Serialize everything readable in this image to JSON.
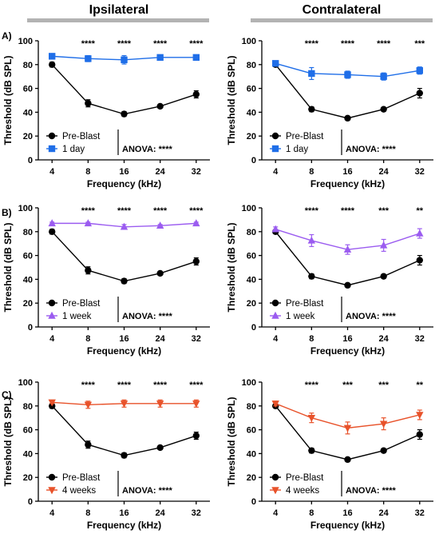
{
  "headers": {
    "left": "Ipsilateral",
    "right": "Contralateral",
    "bar_color": "#b3b3b3"
  },
  "shared_axes": {
    "xlabel": "Frequency (kHz)",
    "ylabel": "Threshold (dB SPL)",
    "x_ticks": [
      "4",
      "8",
      "16",
      "24",
      "32"
    ],
    "y_ticks": [
      0,
      20,
      40,
      60,
      80,
      100
    ],
    "ylim": [
      0,
      100
    ],
    "anova_label": "ANOVA:",
    "anova_value": "****"
  },
  "rows": [
    {
      "label": "A)"
    },
    {
      "label": "B)"
    },
    {
      "label": "C)"
    }
  ],
  "chart_data": [
    {
      "type": "line",
      "row": "A)",
      "side": "Ipsilateral",
      "categories": [
        "4",
        "8",
        "16",
        "24",
        "32"
      ],
      "series": [
        {
          "name": "Pre-Blast",
          "color": "#000000",
          "marker": "circle",
          "values": [
            80,
            47.5,
            38.5,
            45,
            55
          ],
          "errors": [
            2,
            3,
            2,
            1,
            3
          ]
        },
        {
          "name": "1 day",
          "color": "#1f6ee8",
          "marker": "square",
          "values": [
            87,
            85,
            84,
            86,
            86
          ],
          "errors": [
            1,
            2.5,
            3.5,
            1.5,
            2
          ]
        }
      ],
      "significance": [
        "",
        "****",
        "****",
        "****",
        "****"
      ],
      "anova": "****"
    },
    {
      "type": "line",
      "row": "A)",
      "side": "Contralateral",
      "categories": [
        "4",
        "8",
        "16",
        "24",
        "32"
      ],
      "series": [
        {
          "name": "Pre-Blast",
          "color": "#000000",
          "marker": "circle",
          "values": [
            80,
            42.5,
            35,
            42.5,
            56
          ],
          "errors": [
            1.5,
            2,
            1,
            1,
            4
          ]
        },
        {
          "name": "1 day",
          "color": "#1f6ee8",
          "marker": "square",
          "values": [
            81,
            72.5,
            71.5,
            70,
            75
          ],
          "errors": [
            1.5,
            5,
            3,
            3,
            3
          ]
        }
      ],
      "significance": [
        "",
        "****",
        "****",
        "****",
        "***"
      ],
      "anova": "****"
    },
    {
      "type": "line",
      "row": "B)",
      "side": "Ipsilateral",
      "categories": [
        "4",
        "8",
        "16",
        "24",
        "32"
      ],
      "series": [
        {
          "name": "Pre-Blast",
          "color": "#000000",
          "marker": "circle",
          "values": [
            80,
            47.5,
            38.5,
            45,
            55
          ],
          "errors": [
            2,
            3,
            2,
            1,
            3
          ]
        },
        {
          "name": "1 week",
          "color": "#9b5cf0",
          "marker": "triangle-up",
          "values": [
            87,
            87,
            84,
            85,
            87
          ],
          "errors": [
            1,
            1,
            2,
            1,
            1
          ]
        }
      ],
      "significance": [
        "",
        "****",
        "****",
        "****",
        "****"
      ],
      "anova": "****"
    },
    {
      "type": "line",
      "row": "B)",
      "side": "Contralateral",
      "categories": [
        "4",
        "8",
        "16",
        "24",
        "32"
      ],
      "series": [
        {
          "name": "Pre-Blast",
          "color": "#000000",
          "marker": "circle",
          "values": [
            80,
            42.5,
            35,
            42.5,
            56
          ],
          "errors": [
            1.5,
            2,
            1,
            1,
            4
          ]
        },
        {
          "name": "1 week",
          "color": "#9b5cf0",
          "marker": "triangle-up",
          "values": [
            82,
            72.5,
            65,
            68.5,
            78.5
          ],
          "errors": [
            2,
            5,
            4,
            5,
            4
          ]
        }
      ],
      "significance": [
        "",
        "****",
        "****",
        "***",
        "**"
      ],
      "anova": "****"
    },
    {
      "type": "line",
      "row": "C)",
      "side": "Ipsilateral",
      "categories": [
        "4",
        "8",
        "16",
        "24",
        "32"
      ],
      "series": [
        {
          "name": "Pre-Blast",
          "color": "#000000",
          "marker": "circle",
          "values": [
            80,
            47.5,
            38.5,
            45,
            55
          ],
          "errors": [
            2,
            3,
            2,
            1,
            3
          ]
        },
        {
          "name": "4 weeks",
          "color": "#e8522a",
          "marker": "triangle-down",
          "values": [
            83,
            81,
            82,
            82,
            82
          ],
          "errors": [
            1,
            3,
            3,
            3,
            3
          ]
        }
      ],
      "significance": [
        "",
        "****",
        "****",
        "****",
        "****"
      ],
      "anova": "****"
    },
    {
      "type": "line",
      "row": "C)",
      "side": "Contralateral",
      "categories": [
        "4",
        "8",
        "16",
        "24",
        "32"
      ],
      "series": [
        {
          "name": "Pre-Blast",
          "color": "#000000",
          "marker": "circle",
          "values": [
            80,
            42.5,
            35,
            42.5,
            56
          ],
          "errors": [
            1.5,
            2,
            1,
            1,
            4
          ]
        },
        {
          "name": "4 weeks",
          "color": "#e8522a",
          "marker": "triangle-down",
          "values": [
            82,
            70,
            61.5,
            65,
            72.5
          ],
          "errors": [
            2,
            4,
            5,
            5,
            4
          ]
        }
      ],
      "significance": [
        "",
        "****",
        "***",
        "***",
        "**"
      ],
      "anova": "****"
    }
  ]
}
